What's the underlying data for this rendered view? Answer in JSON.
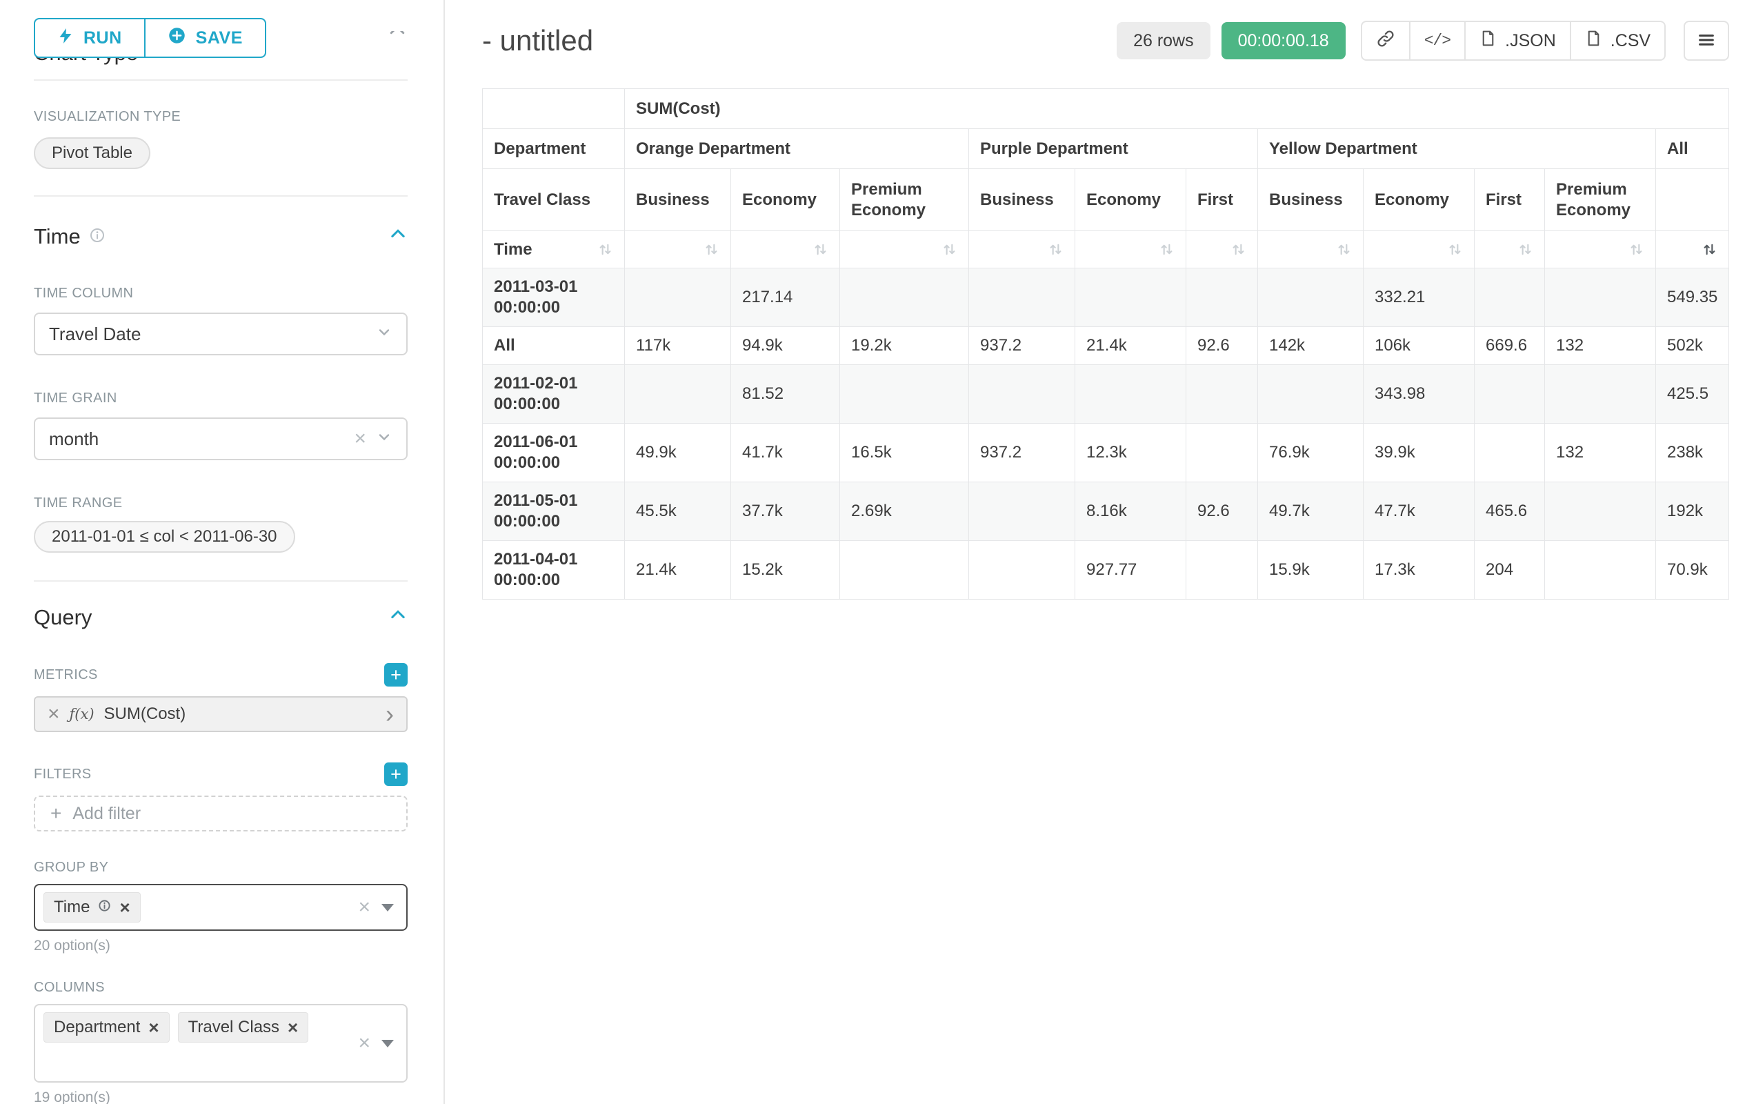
{
  "glyphs": {
    "close": "×",
    "plus": "+",
    "caret": "›",
    "code": "</>"
  },
  "sidebar": {
    "run_label": "RUN",
    "save_label": "SAVE",
    "chart_type_header": "Chart Type",
    "visualization_type_label": "VISUALIZATION TYPE",
    "visualization_type_value": "Pivot Table",
    "time_section": {
      "title": "Time",
      "time_column_label": "TIME COLUMN",
      "time_column_value": "Travel Date",
      "time_grain_label": "TIME GRAIN",
      "time_grain_value": "month",
      "time_range_label": "TIME RANGE",
      "time_range_value": "2011-01-01 ≤ col < 2011-06-30"
    },
    "query_section": {
      "title": "Query",
      "metrics_label": "METRICS",
      "metric_fx": "ƒ(x)",
      "metric_chip": "SUM(Cost)",
      "filters_label": "FILTERS",
      "add_filter_label": "Add filter",
      "group_by_label": "GROUP BY",
      "group_by_chips": [
        "Time"
      ],
      "group_by_options_hint": "20 option(s)",
      "columns_label": "COLUMNS",
      "columns_chips": [
        "Department",
        "Travel Class"
      ],
      "columns_options_hint": "19 option(s)"
    }
  },
  "header": {
    "title": "- untitled",
    "rows_badge": "26 rows",
    "timer_badge": "00:00:00.18",
    "json_label": ".JSON",
    "csv_label": ".CSV"
  },
  "pivot": {
    "metric_header": "SUM(Cost)",
    "department_label": "Department",
    "travel_class_label": "Travel Class",
    "time_label": "Time",
    "groups": [
      {
        "label": "Orange Department",
        "cols": [
          "Business",
          "Economy",
          "Premium Economy"
        ]
      },
      {
        "label": "Purple Department",
        "cols": [
          "Business",
          "Economy",
          "First"
        ]
      },
      {
        "label": "Yellow Department",
        "cols": [
          "Business",
          "Economy",
          "First",
          "Premium Economy"
        ]
      },
      {
        "label": "All",
        "cols": [
          ""
        ]
      }
    ],
    "rows": [
      {
        "label": "2011-03-01 00:00:00",
        "values": [
          "",
          "217.14",
          "",
          "",
          "",
          "",
          "",
          "332.21",
          "",
          "",
          "549.35"
        ]
      },
      {
        "label": "All",
        "values": [
          "117k",
          "94.9k",
          "19.2k",
          "937.2",
          "21.4k",
          "92.6",
          "142k",
          "106k",
          "669.6",
          "132",
          "502k"
        ]
      },
      {
        "label": "2011-02-01 00:00:00",
        "values": [
          "",
          "81.52",
          "",
          "",
          "",
          "",
          "",
          "343.98",
          "",
          "",
          "425.5"
        ]
      },
      {
        "label": "2011-06-01 00:00:00",
        "values": [
          "49.9k",
          "41.7k",
          "16.5k",
          "937.2",
          "12.3k",
          "",
          "76.9k",
          "39.9k",
          "",
          "132",
          "238k"
        ]
      },
      {
        "label": "2011-05-01 00:00:00",
        "values": [
          "45.5k",
          "37.7k",
          "2.69k",
          "",
          "8.16k",
          "92.6",
          "49.7k",
          "47.7k",
          "465.6",
          "",
          "192k"
        ]
      },
      {
        "label": "2011-04-01 00:00:00",
        "values": [
          "21.4k",
          "15.2k",
          "",
          "",
          "927.77",
          "",
          "15.9k",
          "17.3k",
          "204",
          "",
          "70.9k"
        ]
      }
    ]
  }
}
